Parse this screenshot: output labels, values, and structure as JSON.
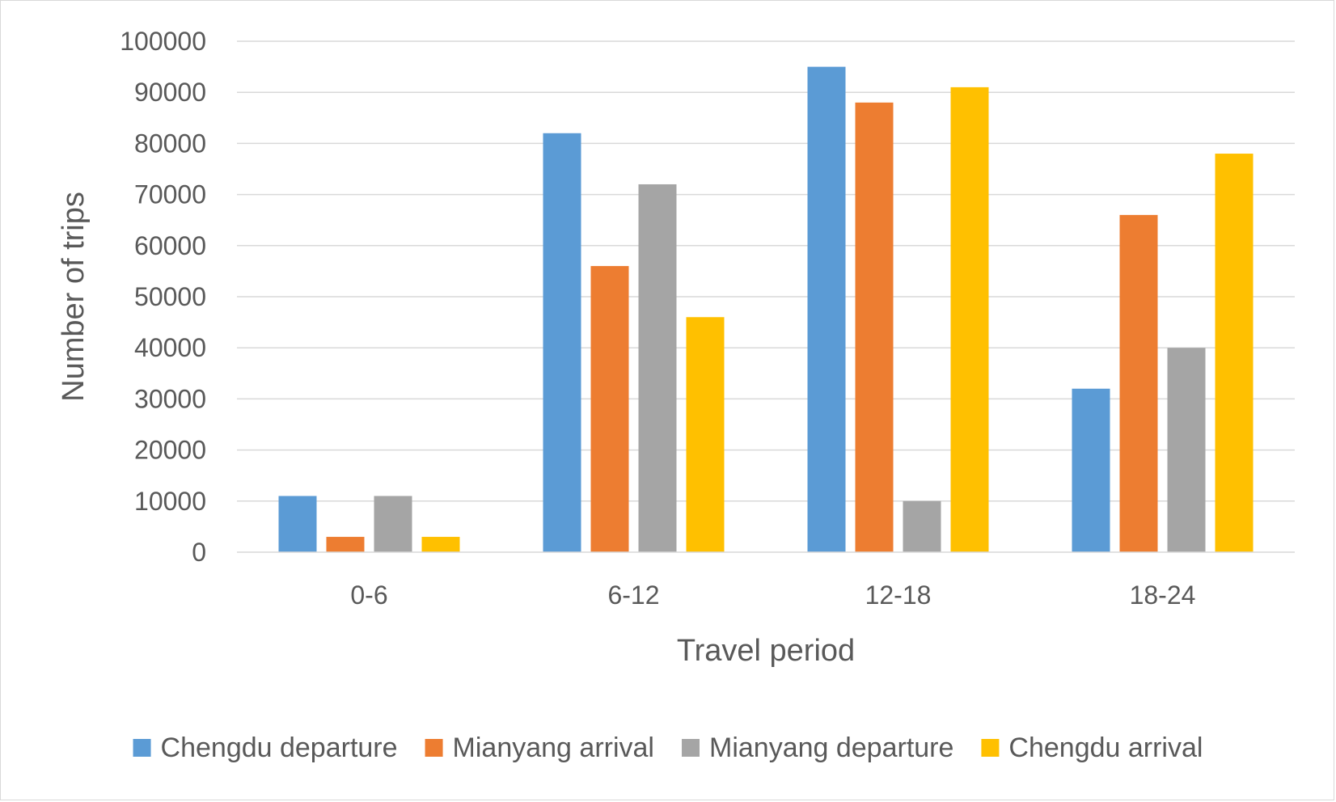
{
  "chart_data": {
    "type": "bar",
    "title": "",
    "xlabel": "Travel period",
    "ylabel": "Number of trips",
    "categories": [
      "0-6",
      "6-12",
      "12-18",
      "18-24"
    ],
    "yticks": [
      "0",
      "10000",
      "20000",
      "30000",
      "40000",
      "50000",
      "60000",
      "70000",
      "80000",
      "90000",
      "100000"
    ],
    "ylim": [
      0,
      100000
    ],
    "grid": true,
    "legend_position": "bottom",
    "series": [
      {
        "name": "Chengdu departure",
        "color": "#5b9bd5",
        "values": [
          11000,
          82000,
          95000,
          32000
        ]
      },
      {
        "name": "Mianyang arrival",
        "color": "#ed7d31",
        "values": [
          3000,
          56000,
          88000,
          66000
        ]
      },
      {
        "name": "Mianyang departure",
        "color": "#a5a5a5",
        "values": [
          11000,
          72000,
          10000,
          40000
        ]
      },
      {
        "name": "Chengdu arrival",
        "color": "#ffc000",
        "values": [
          3000,
          46000,
          91000,
          78000
        ]
      }
    ]
  }
}
